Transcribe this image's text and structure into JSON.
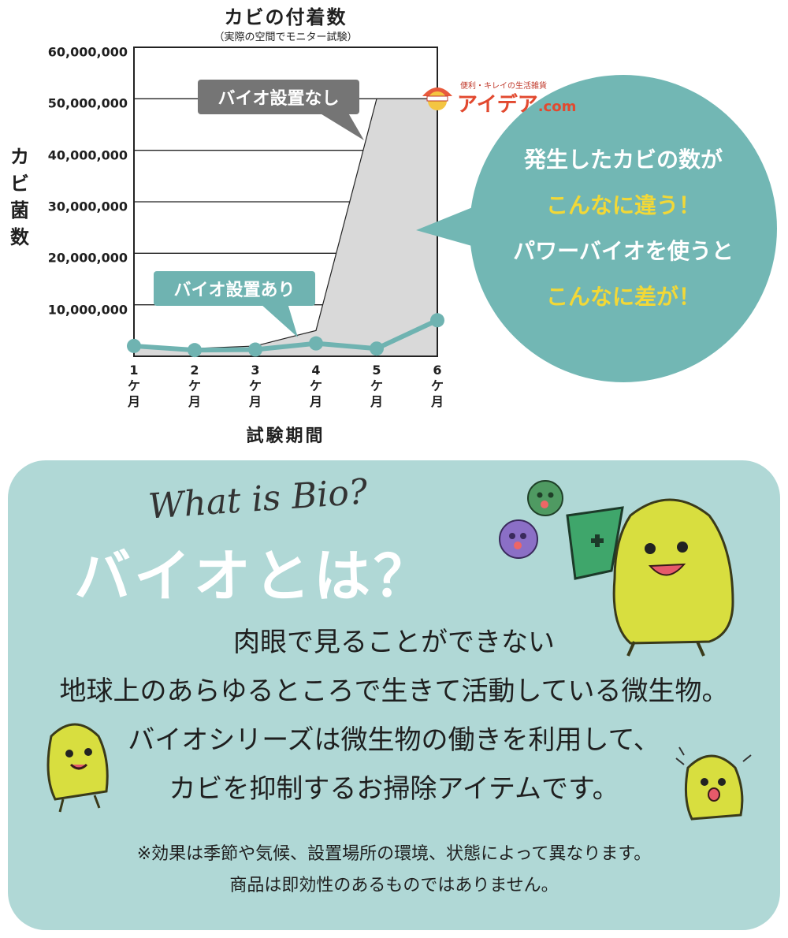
{
  "chart_data": {
    "type": "area",
    "title": "カビの付着数",
    "subtitle": "（実際の空間でモニター試験）",
    "ylabel": "カビ菌数",
    "xlabel": "試験期間",
    "ylim": [
      0,
      60000000
    ],
    "yticks": [
      "60,000,000",
      "50,000,000",
      "40,000,000",
      "30,000,000",
      "20,000,000",
      "10,000,000"
    ],
    "ytick_values": [
      60000000,
      50000000,
      40000000,
      30000000,
      20000000,
      10000000
    ],
    "categories": [
      "1\nケ\n月",
      "2\nケ\n月",
      "3\nケ\n月",
      "4\nケ\n月",
      "5\nケ\n月",
      "6\nケ\n月"
    ],
    "grid": true,
    "series": [
      {
        "name": "バイオ設置なし",
        "values": [
          2000000,
          1500000,
          2000000,
          5000000,
          50000000,
          50000000
        ],
        "color": "#d9d9d9"
      },
      {
        "name": "バイオ設置あり",
        "values": [
          2000000,
          1200000,
          1300000,
          2500000,
          1500000,
          7000000
        ],
        "color": "#6fb3b1"
      }
    ]
  },
  "callouts": {
    "without": "バイオ設置なし",
    "with": "バイオ設置あり"
  },
  "bubble": {
    "line1": "発生したカビの数が",
    "line2": "こんなに違う！",
    "line3": "パワーバイオを使うと",
    "line4": "こんなに差が！"
  },
  "logo": {
    "tagline": "便利・キレイの生活雑貨",
    "name": "アイデア",
    "suffix": ".com"
  },
  "info": {
    "what": "What is Bio?",
    "headline": "バイオとは？",
    "body1": "肉眼で見ることができない",
    "body2": "地球上のあらゆるところで生きて活動している微生物。",
    "body3": "バイオシリーズは微生物の働きを利用して、",
    "body4": "カビを抑制するお掃除アイテムです。",
    "note1": "※効果は季節や気候、設置場所の環境、状態によって異なります。",
    "note2": "商品は即効性のあるものではありません。"
  },
  "colors": {
    "teal": "#72b7b4",
    "panel": "#b0d8d6",
    "highlight": "#f2d837",
    "mascot": "#d8de3f"
  }
}
